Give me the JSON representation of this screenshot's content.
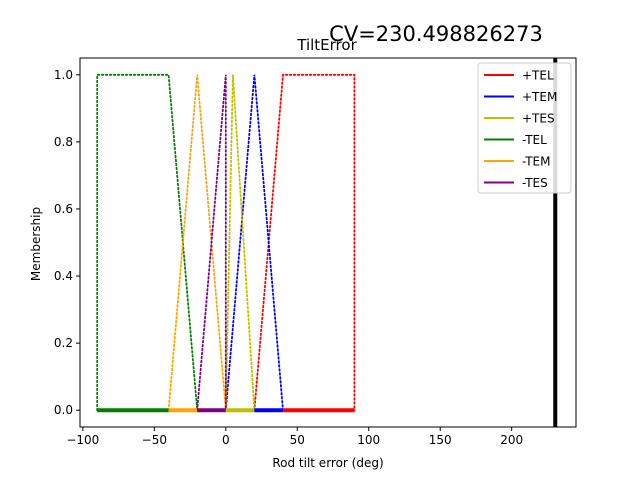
{
  "chart_data": {
    "type": "line",
    "title": "TiltError",
    "annotation": "CV=230.498826273",
    "xlabel": "Rod tilt error (deg)",
    "ylabel": "Membership",
    "xlim": [
      -102,
      245
    ],
    "ylim": [
      -0.05,
      1.05
    ],
    "xticks": [
      -100,
      -50,
      0,
      50,
      100,
      150,
      200
    ],
    "xtick_labels": [
      "−100",
      "−50",
      "0",
      "50",
      "100",
      "150",
      "200"
    ],
    "yticks": [
      0.0,
      0.2,
      0.4,
      0.6,
      0.8,
      1.0
    ],
    "ytick_labels": [
      "0.0",
      "0.2",
      "0.4",
      "0.6",
      "0.8",
      "1.0"
    ],
    "grid": false,
    "legend_position": "top-right",
    "marker_value": 230.498826273,
    "marker_color": "#000000",
    "series": [
      {
        "name": "+TEL",
        "color": "#ff0000",
        "x": [
          0,
          20,
          40,
          90,
          90
        ],
        "y": [
          0,
          0,
          1,
          1,
          0
        ]
      },
      {
        "name": "+TEM",
        "color": "#0000ff",
        "x": [
          0,
          20,
          40
        ],
        "y": [
          0,
          1,
          0
        ]
      },
      {
        "name": "+TES",
        "color": "#bfbf00",
        "x": [
          0,
          5,
          20
        ],
        "y": [
          0,
          1,
          0
        ]
      },
      {
        "name": "-TEL",
        "color": "#008000",
        "x": [
          -90,
          -90,
          -40,
          -20,
          0
        ],
        "y": [
          0,
          1,
          1,
          0,
          0
        ]
      },
      {
        "name": "-TEM",
        "color": "#ffa500",
        "x": [
          -40,
          -20,
          0
        ],
        "y": [
          0,
          1,
          0
        ]
      },
      {
        "name": "-TES",
        "color": "#800080",
        "x": [
          -20,
          0,
          0
        ],
        "y": [
          0,
          1,
          0
        ]
      }
    ],
    "baseline_segments": [
      {
        "from": -90,
        "to": -40,
        "color": "#008000"
      },
      {
        "from": -40,
        "to": -20,
        "color": "#ffa500"
      },
      {
        "from": -20,
        "to": 0,
        "color": "#800080"
      },
      {
        "from": 0,
        "to": 20,
        "color": "#bfbf00"
      },
      {
        "from": 20,
        "to": 40,
        "color": "#0000ff"
      },
      {
        "from": 40,
        "to": 90,
        "color": "#ff0000"
      }
    ]
  }
}
